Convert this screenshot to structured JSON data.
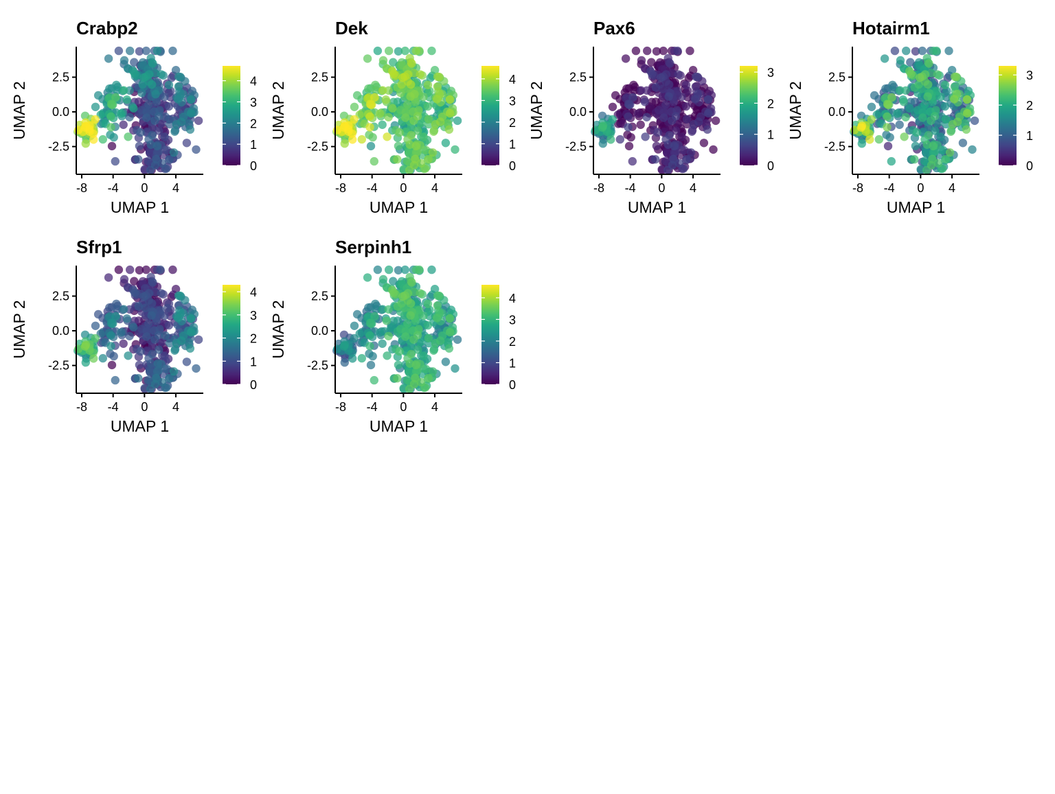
{
  "colors": {
    "viridis": [
      "#440154",
      "#482475",
      "#414487",
      "#355f8d",
      "#2a788e",
      "#21918c",
      "#22a884",
      "#44bf70",
      "#7ad151",
      "#bddf26",
      "#fde725"
    ],
    "axis": "#000000",
    "background": "#ffffff"
  },
  "chart_data": [
    {
      "type": "scatter",
      "title": "Crabp2",
      "xlabel": "UMAP 1",
      "ylabel": "UMAP 2",
      "xlim": [
        -8.7,
        7.5
      ],
      "ylim": [
        -4.5,
        4.7
      ],
      "xticks": [
        -8,
        -4,
        0,
        4
      ],
      "xtick_labels": [
        "-8",
        "-4",
        "0",
        "4"
      ],
      "yticks": [
        -2.5,
        0.0,
        2.5
      ],
      "ytick_labels": [
        "-2.5",
        "0.0",
        "2.5"
      ],
      "color_scale": {
        "min": 0,
        "max": 4.7,
        "ticks": [
          0,
          1,
          2,
          3,
          4
        ],
        "labels": [
          "0",
          "1",
          "2",
          "3",
          "4"
        ]
      },
      "legend": "right",
      "grid": false,
      "pattern": {
        "left": 4.2,
        "bridge": 2.6,
        "top": 1.8,
        "main": 0.7,
        "right": 1.4,
        "bottom": 0.5,
        "spread": 0.9
      }
    },
    {
      "type": "scatter",
      "title": "Dek",
      "xlabel": "UMAP 1",
      "ylabel": "UMAP 2",
      "xlim": [
        -8.7,
        7.5
      ],
      "ylim": [
        -4.5,
        4.7
      ],
      "xticks": [
        -8,
        -4,
        0,
        4
      ],
      "xtick_labels": [
        "-8",
        "-4",
        "0",
        "4"
      ],
      "yticks": [
        -2.5,
        0.0,
        2.5
      ],
      "ytick_labels": [
        "-2.5",
        "0.0",
        "2.5"
      ],
      "color_scale": {
        "min": 0,
        "max": 4.6,
        "ticks": [
          0,
          1,
          2,
          3,
          4
        ],
        "labels": [
          "0",
          "1",
          "2",
          "3",
          "4"
        ]
      },
      "legend": "right",
      "grid": false,
      "pattern": {
        "left": 4.1,
        "bridge": 3.6,
        "top": 3.4,
        "main": 3.0,
        "right": 3.2,
        "bottom": 3.0,
        "spread": 0.8
      }
    },
    {
      "type": "scatter",
      "title": "Pax6",
      "xlabel": "UMAP 1",
      "ylabel": "UMAP 2",
      "xlim": [
        -8.7,
        7.5
      ],
      "ylim": [
        -4.5,
        4.7
      ],
      "xticks": [
        -8,
        -4,
        0,
        4
      ],
      "xtick_labels": [
        "-8",
        "-4",
        "0",
        "4"
      ],
      "yticks": [
        -2.5,
        0.0,
        2.5
      ],
      "ytick_labels": [
        "-2.5",
        "0.0",
        "2.5"
      ],
      "color_scale": {
        "min": 0,
        "max": 3.2,
        "ticks": [
          0,
          1,
          2,
          3
        ],
        "labels": [
          "0",
          "1",
          "2",
          "3"
        ]
      },
      "legend": "right",
      "grid": false,
      "pattern": {
        "left": 1.6,
        "bridge": 0.05,
        "top": 0.05,
        "main": 0.05,
        "right": 0.05,
        "bottom": 0.05,
        "spread": 0.6
      }
    },
    {
      "type": "scatter",
      "title": "Hotairm1",
      "xlabel": "UMAP 1",
      "ylabel": "UMAP 2",
      "xlim": [
        -8.7,
        7.5
      ],
      "ylim": [
        -4.5,
        4.7
      ],
      "xticks": [
        -8,
        -4,
        0,
        4
      ],
      "xtick_labels": [
        "-8",
        "-4",
        "0",
        "4"
      ],
      "yticks": [
        -2.5,
        0.0,
        2.5
      ],
      "ytick_labels": [
        "-2.5",
        "0.0",
        "2.5"
      ],
      "color_scale": {
        "min": 0,
        "max": 3.3,
        "ticks": [
          0,
          1,
          2,
          3
        ],
        "labels": [
          "0",
          "1",
          "2",
          "3"
        ]
      },
      "legend": "right",
      "grid": false,
      "pattern": {
        "left": 2.2,
        "bridge": 1.6,
        "top": 1.6,
        "main": 1.3,
        "right": 1.7,
        "bottom": 1.3,
        "spread": 1.1
      }
    },
    {
      "type": "scatter",
      "title": "Sfrp1",
      "xlabel": "UMAP 1",
      "ylabel": "UMAP 2",
      "xlim": [
        -8.7,
        7.5
      ],
      "ylim": [
        -4.5,
        4.7
      ],
      "xticks": [
        -8,
        -4,
        0,
        4
      ],
      "xtick_labels": [
        "-8",
        "-4",
        "0",
        "4"
      ],
      "yticks": [
        -2.5,
        0.0,
        2.5
      ],
      "ytick_labels": [
        "-2.5",
        "0.0",
        "2.5"
      ],
      "color_scale": {
        "min": 0,
        "max": 4.3,
        "ticks": [
          0,
          1,
          2,
          3,
          4
        ],
        "labels": [
          "0",
          "1",
          "2",
          "3",
          "4"
        ]
      },
      "legend": "right",
      "grid": false,
      "pattern": {
        "left": 2.7,
        "bridge": 1.4,
        "top": 0.4,
        "main": 0.5,
        "right": 1.5,
        "bottom": 0.9,
        "spread": 0.8
      }
    },
    {
      "type": "scatter",
      "title": "Serpinh1",
      "xlabel": "UMAP 1",
      "ylabel": "UMAP 2",
      "xlim": [
        -8.7,
        7.5
      ],
      "ylim": [
        -4.5,
        4.7
      ],
      "xticks": [
        -8,
        -4,
        0,
        4
      ],
      "xtick_labels": [
        "-8",
        "-4",
        "0",
        "4"
      ],
      "yticks": [
        -2.5,
        0.0,
        2.5
      ],
      "ytick_labels": [
        "-2.5",
        "0.0",
        "2.5"
      ],
      "color_scale": {
        "min": 0,
        "max": 4.6,
        "ticks": [
          0,
          1,
          2,
          3,
          4
        ],
        "labels": [
          "0",
          "1",
          "2",
          "3",
          "4"
        ]
      },
      "legend": "right",
      "grid": false,
      "pattern": {
        "left": 1.7,
        "bridge": 2.2,
        "top": 2.8,
        "main": 2.6,
        "right": 2.5,
        "bottom": 2.6,
        "spread": 0.9
      }
    }
  ]
}
